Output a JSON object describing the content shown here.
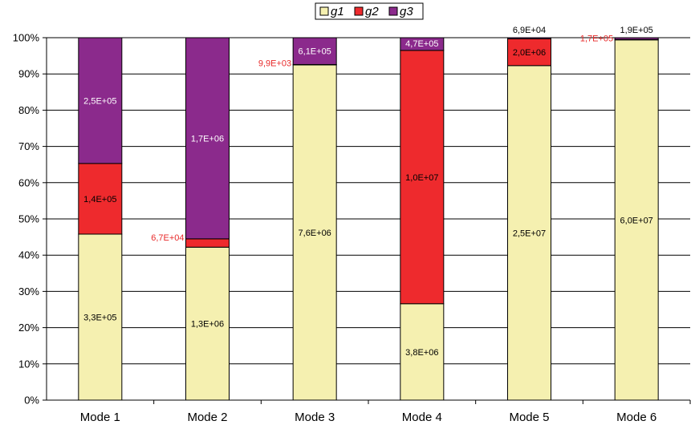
{
  "chart_data": {
    "type": "bar",
    "stacked": true,
    "percent_stacked": true,
    "categories": [
      "Mode 1",
      "Mode 2",
      "Mode 3",
      "Mode 4",
      "Mode 5",
      "Mode 6"
    ],
    "series": [
      {
        "name": "g1",
        "color": "#f5f0b0",
        "values": [
          45.8,
          42.2,
          92.5,
          26.6,
          92.3,
          99.4
        ],
        "labels": [
          "3,3E+05",
          "1,3E+06",
          "7,6E+06",
          "3,8E+06",
          "2,5E+07",
          "6,0E+07"
        ]
      },
      {
        "name": "g2",
        "color": "#ee2a2d",
        "values": [
          19.5,
          2.3,
          0.1,
          69.9,
          7.4,
          0.1
        ],
        "labels": [
          "1,4E+05",
          "6,7E+04",
          "9,9E+03",
          "1,0E+07",
          "2,0E+06",
          "1,7E+05"
        ]
      },
      {
        "name": "g3",
        "color": "#8b2a8c",
        "values": [
          34.7,
          55.5,
          7.4,
          3.5,
          0.3,
          0.5
        ],
        "labels": [
          "2,5E+05",
          "1,7E+06",
          "6,1E+05",
          "4,7E+05",
          "6,9E+04",
          "1,9E+05"
        ]
      }
    ],
    "y_ticks": [
      "0%",
      "10%",
      "20%",
      "30%",
      "40%",
      "50%",
      "60%",
      "70%",
      "80%",
      "90%",
      "100%"
    ],
    "ylim": [
      0,
      100
    ],
    "grid": true,
    "legend_position": "top-center",
    "label_colors": {
      "inside_dark": "#000000",
      "inside_light": "#ffffff",
      "outside_red": "#e82a2a",
      "outside_dark": "#000000"
    }
  }
}
